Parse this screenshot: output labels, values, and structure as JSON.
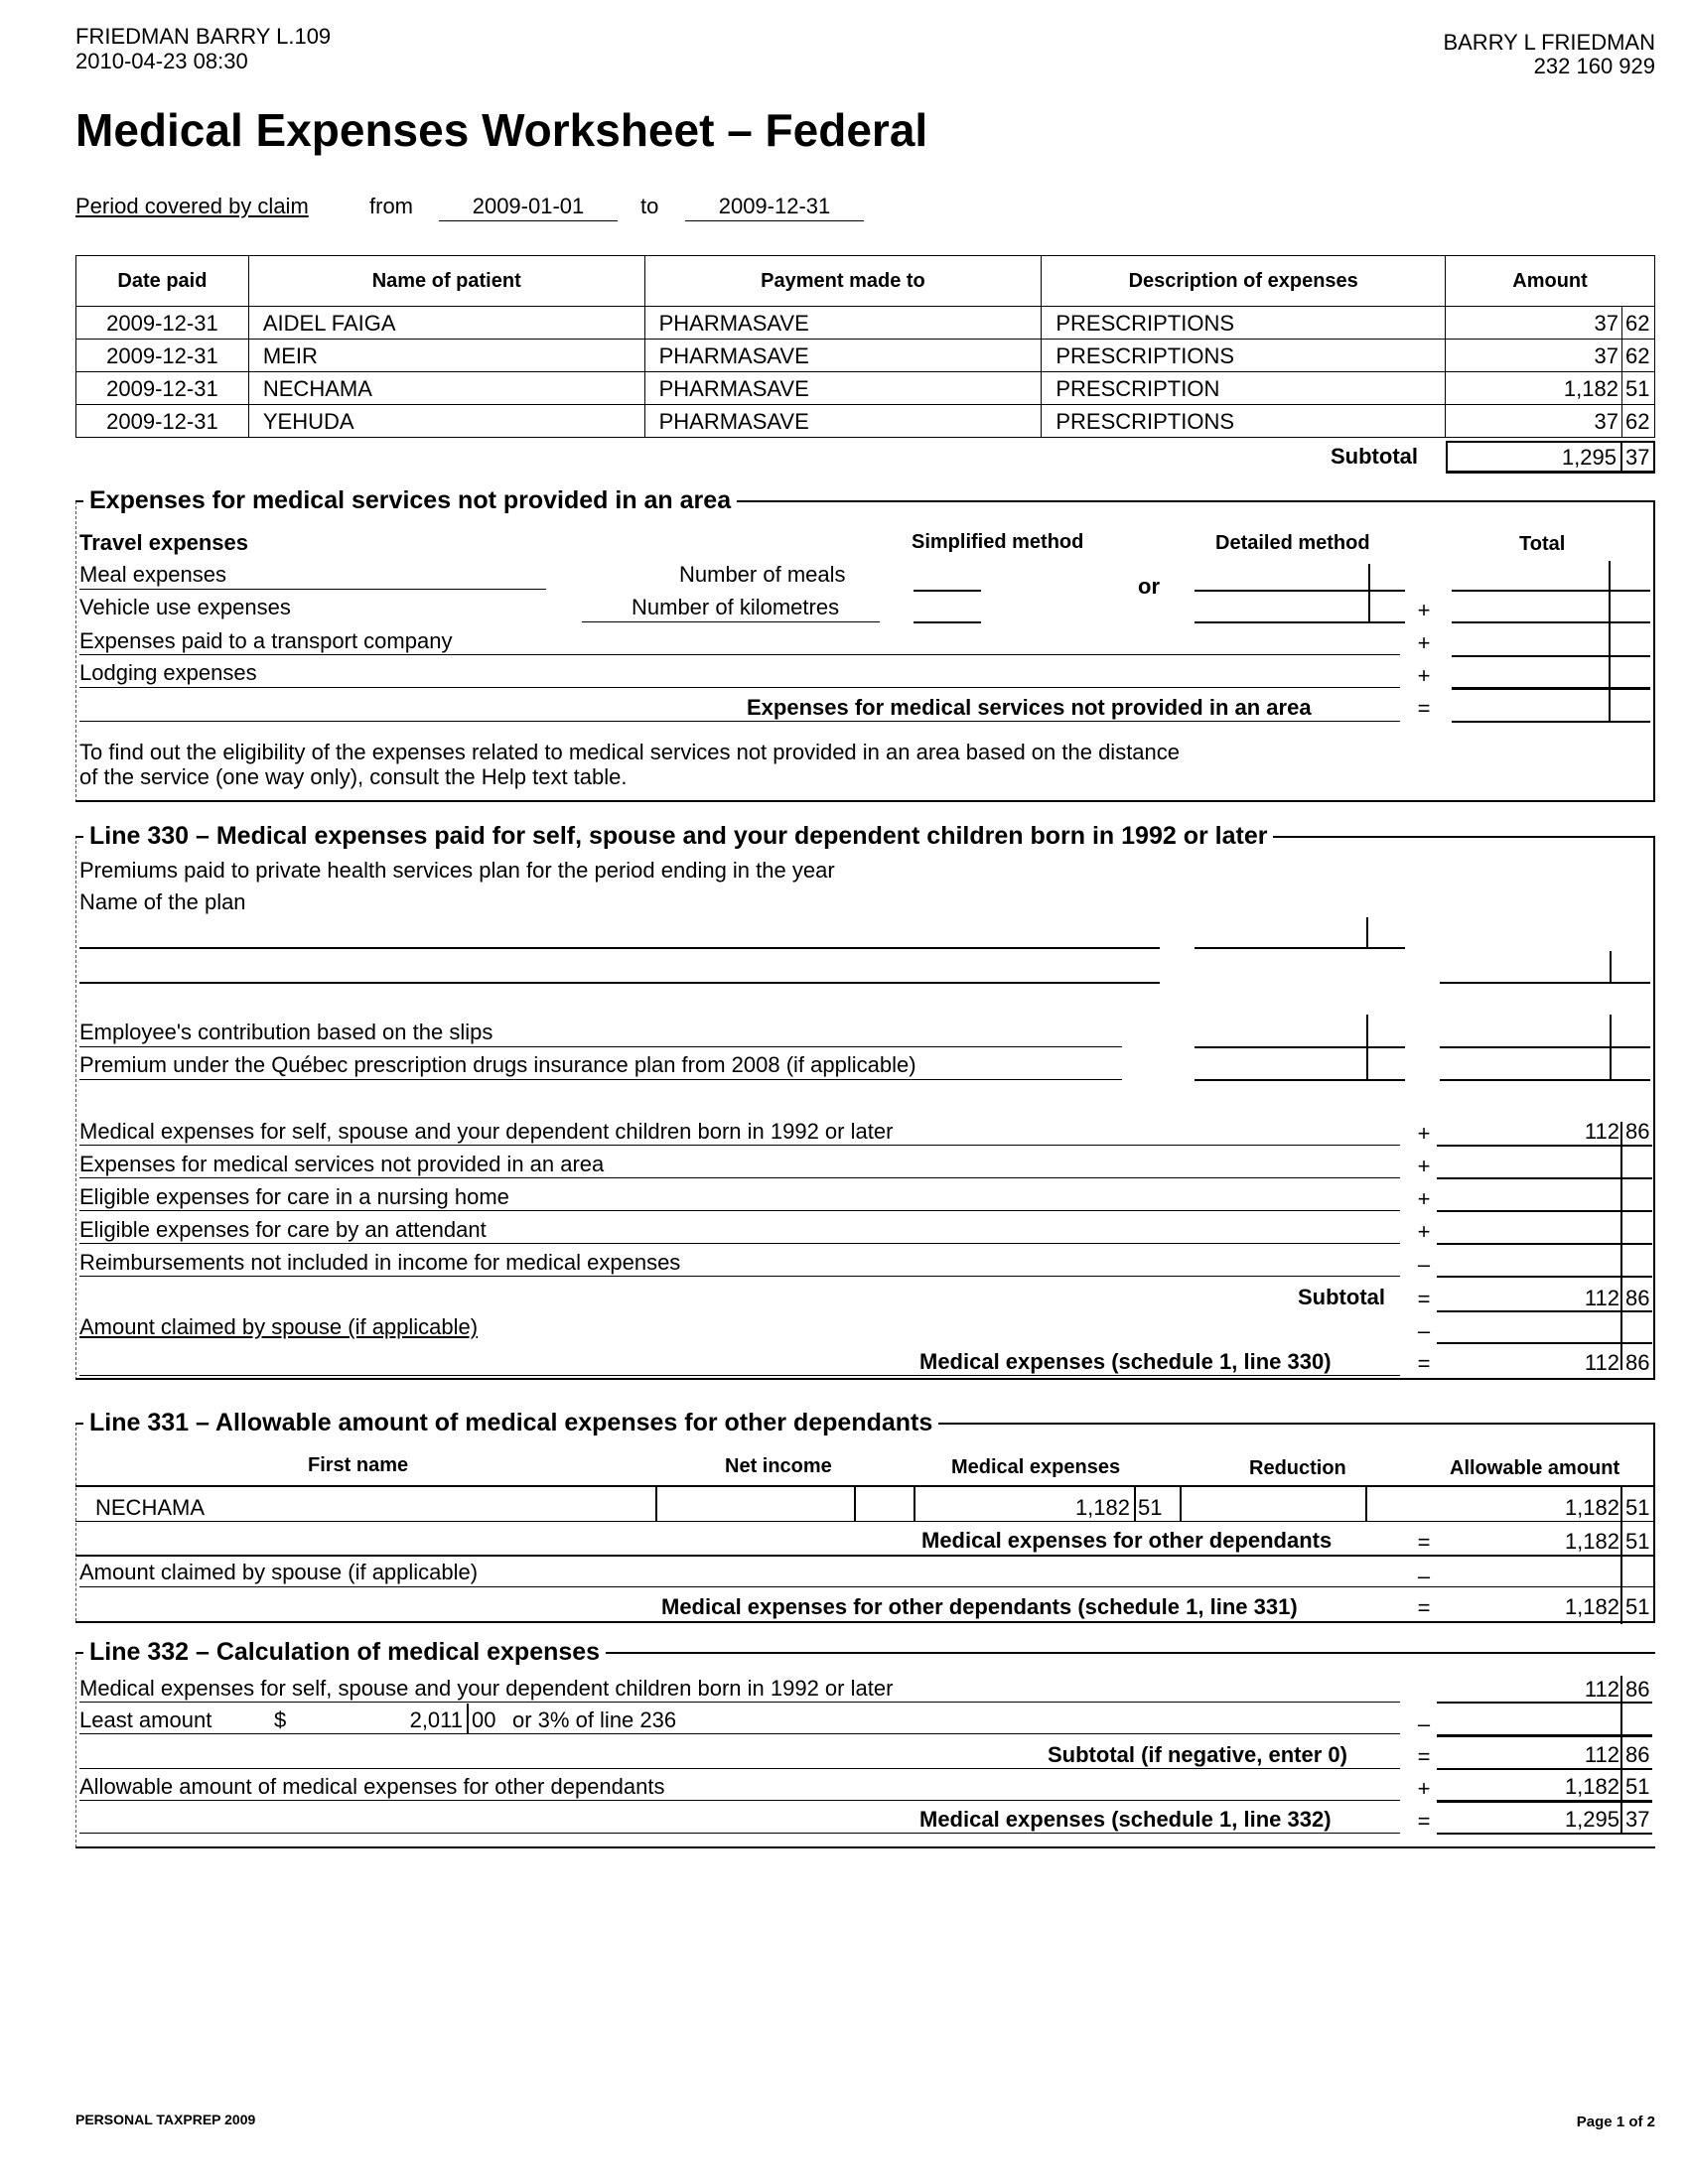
{
  "header": {
    "file_id": "FRIEDMAN BARRY L.109",
    "timestamp": "2010-04-23 08:30",
    "taxpayer_name": "BARRY L FRIEDMAN",
    "sin": "232 160 929"
  },
  "title": "Medical Expenses Worksheet – Federal",
  "period": {
    "label": "Period covered by claim",
    "from_label": "from",
    "from": "2009-01-01",
    "to_label": "to",
    "to": "2009-12-31"
  },
  "expenses_table": {
    "columns": [
      "Date paid",
      "Name of patient",
      "Payment made to",
      "Description of expenses",
      "Amount"
    ],
    "rows": [
      {
        "date": "2009-12-31",
        "patient": "AIDEL FAIGA",
        "payee": "PHARMASAVE",
        "description": "PRESCRIPTIONS",
        "dollars": "37",
        "cents": "62"
      },
      {
        "date": "2009-12-31",
        "patient": "MEIR",
        "payee": "PHARMASAVE",
        "description": "PRESCRIPTIONS",
        "dollars": "37",
        "cents": "62"
      },
      {
        "date": "2009-12-31",
        "patient": "NECHAMA",
        "payee": "PHARMASAVE",
        "description": "PRESCRIPTION",
        "dollars": "1,182",
        "cents": "51"
      },
      {
        "date": "2009-12-31",
        "patient": "YEHUDA",
        "payee": "PHARMASAVE",
        "description": "PRESCRIPTIONS",
        "dollars": "37",
        "cents": "62"
      }
    ],
    "subtotal_label": "Subtotal",
    "subtotal_dollars": "1,295",
    "subtotal_cents": "37"
  },
  "area": {
    "title": "Expenses for medical services not provided in an area",
    "travel": "Travel expenses",
    "simplified": "Simplified method",
    "detailed": "Detailed method",
    "total": "Total",
    "or": "or",
    "meal": "Meal expenses",
    "meal_count": "Number of meals",
    "vehicle": "Vehicle use expenses",
    "km": "Number of kilometres",
    "transport": "Expenses paid to a transport company",
    "lodging": "Lodging expenses",
    "result": "Expenses for medical services not provided in an area",
    "note1": "To find out the eligibility of the expenses related to medical services not provided in an area based on the distance",
    "note2": "of the service (one way only), consult the Help text table."
  },
  "l330": {
    "title": "Line 330 – Medical expenses paid for self, spouse and your dependent children born in 1992 or later",
    "premiums": "Premiums paid to private health services plan for the period ending in the year",
    "plan_name": "Name of the plan",
    "employee": "Employee's contribution based on the slips",
    "quebec": "Premium under the Québec prescription drugs insurance plan from 2008 (if applicable)",
    "items": [
      {
        "label": "Medical expenses for self, spouse and your dependent children born in 1992 or later",
        "op": "+",
        "dollars": "112",
        "cents": "86"
      },
      {
        "label": "Expenses for medical services not provided in an area",
        "op": "+"
      },
      {
        "label": "Eligible expenses for care in a nursing home",
        "op": "+"
      },
      {
        "label": "Eligible expenses for care by an attendant",
        "op": "+"
      },
      {
        "label": "Reimbursements not included in income for medical expenses",
        "op": "–"
      }
    ],
    "subtotal_label": "Subtotal",
    "subtotal_dollars": "112",
    "subtotal_cents": "86",
    "spouse": "Amount claimed by spouse (if applicable)",
    "result": "Medical expenses (schedule 1, line 330)",
    "result_dollars": "112",
    "result_cents": "86"
  },
  "l331": {
    "title": "Line 331 – Allowable amount of medical expenses for other dependants",
    "columns": [
      "First name",
      "Net income",
      "Medical expenses",
      "Reduction",
      "Allowable amount"
    ],
    "row": {
      "name": "NECHAMA",
      "med_dollars": "1,182",
      "med_cents": "51",
      "allow_dollars": "1,182",
      "allow_cents": "51"
    },
    "total_label": "Medical expenses for other dependants",
    "total_dollars": "1,182",
    "total_cents": "51",
    "spouse": "Amount claimed by spouse (if applicable)",
    "result": "Medical expenses for other dependants (schedule 1, line 331)",
    "result_dollars": "1,182",
    "result_cents": "51"
  },
  "l332": {
    "title": "Line 332 – Calculation of medical expenses",
    "self": "Medical expenses for self, spouse and your dependent children born in 1992 or later",
    "self_dollars": "112",
    "self_cents": "86",
    "least": "Least amount",
    "currency": "$",
    "least_dollars": "2,011",
    "least_cents": "00",
    "least_suffix": "or 3% of line 236",
    "subtotal": "Subtotal (if negative, enter 0)",
    "subtotal_dollars": "112",
    "subtotal_cents": "86",
    "allowable": "Allowable amount of medical expenses for other dependants",
    "allowable_dollars": "1,182",
    "allowable_cents": "51",
    "result": "Medical expenses (schedule 1, line 332)",
    "result_dollars": "1,295",
    "result_cents": "37"
  },
  "footer": {
    "software": "PERSONAL TAXPREP 2009",
    "page": "Page 1 of 2"
  }
}
